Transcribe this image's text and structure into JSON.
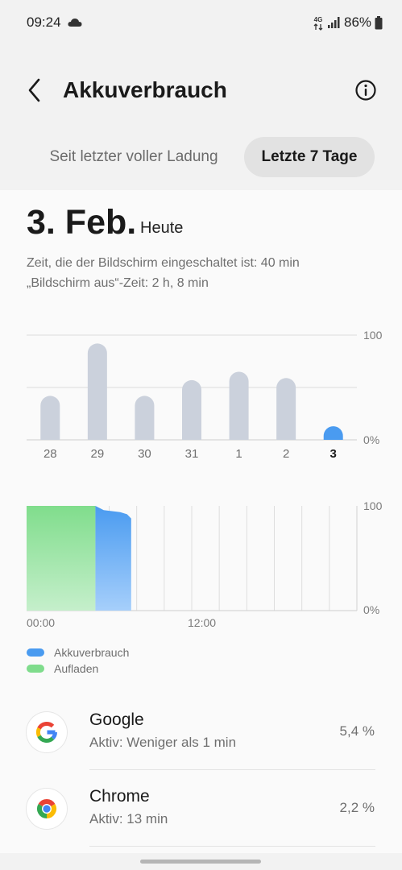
{
  "status_bar": {
    "time": "09:24",
    "network": "4G",
    "battery": "86%",
    "icons": [
      "cloud-icon",
      "network-4g-icon",
      "signal-icon",
      "battery-icon"
    ]
  },
  "header": {
    "title": "Akkuverbrauch",
    "back_icon": "back-arrow-icon",
    "info_icon": "info-icon"
  },
  "tabs": [
    {
      "label": "Seit letzter voller Ladung",
      "selected": false
    },
    {
      "label": "Letzte 7 Tage",
      "selected": true
    }
  ],
  "summary": {
    "date": "3. Feb.",
    "date_sub": "Heute",
    "screen_on": "Zeit, die der Bildschirm eingeschaltet ist: 40 min",
    "screen_off": "„Bildschirm aus“-Zeit: 2 h, 8 min"
  },
  "chart_data": [
    {
      "type": "bar",
      "categories": [
        "28",
        "29",
        "30",
        "31",
        "1",
        "2",
        "3"
      ],
      "values": [
        42,
        92,
        42,
        57,
        65,
        59,
        13
      ],
      "selected_category": "3",
      "y_tick_labels": [
        "100",
        "0%"
      ],
      "ylim": [
        0,
        100
      ],
      "colors": {
        "bar": "#cbd1dc",
        "selected": "#4a9bf0"
      }
    },
    {
      "type": "area",
      "x_tick_labels": [
        "00:00",
        "12:00"
      ],
      "y_tick_labels": [
        "100",
        "0%"
      ],
      "ylim": [
        0,
        100
      ],
      "x_range_hours": [
        0,
        24
      ],
      "series": [
        {
          "name": "Aufladen",
          "color": "#7fdc8c",
          "x": [
            0,
            5
          ],
          "y": [
            100,
            100
          ]
        },
        {
          "name": "Akkuverbrauch",
          "color": "#4a9bf0",
          "x": [
            5,
            5.3,
            5.6,
            6.2,
            6.8,
            7.3,
            7.6
          ],
          "y": [
            100,
            98,
            96,
            95,
            94,
            92,
            88
          ]
        }
      ]
    }
  ],
  "legend": [
    {
      "label": "Akkuverbrauch",
      "color": "#4a9bf0"
    },
    {
      "label": "Aufladen",
      "color": "#7fdc8c"
    }
  ],
  "apps": [
    {
      "name": "Google",
      "detail": "Aktiv: Weniger als 1 min",
      "percent": "5,4 %",
      "icon": "google-icon"
    },
    {
      "name": "Chrome",
      "detail": "Aktiv: 13 min",
      "percent": "2,2 %",
      "icon": "chrome-icon"
    }
  ]
}
